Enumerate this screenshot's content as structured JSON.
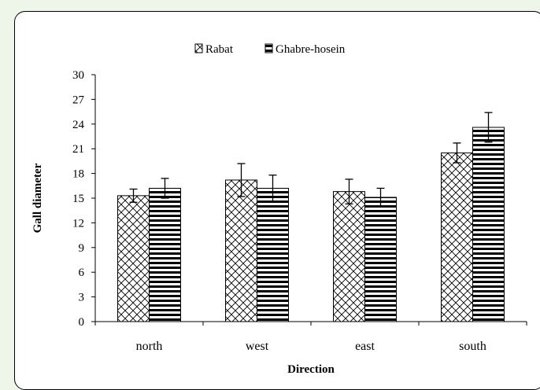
{
  "chart_data": {
    "type": "bar",
    "title": "",
    "xlabel": "Direction",
    "ylabel": "Gall diameter",
    "categories": [
      "north",
      "west",
      "east",
      "south"
    ],
    "ylim": [
      0,
      30
    ],
    "yticks": [
      0,
      3,
      6,
      9,
      12,
      15,
      18,
      21,
      24,
      27,
      30
    ],
    "legend_position": "top-center",
    "grid": false,
    "series": [
      {
        "name": "Rabat",
        "pattern": "crosshatch",
        "values": [
          15.3,
          17.2,
          15.8,
          20.5
        ],
        "errors": [
          0.8,
          2.0,
          1.5,
          1.2
        ]
      },
      {
        "name": "Ghabre-hosein",
        "pattern": "horizontal-lines",
        "values": [
          16.2,
          16.2,
          15.1,
          23.6
        ],
        "errors": [
          1.2,
          1.6,
          1.1,
          1.8
        ]
      }
    ],
    "colors": {
      "bar_fill": "#ffffff",
      "pattern": "#000000",
      "axis": "#000000"
    }
  }
}
